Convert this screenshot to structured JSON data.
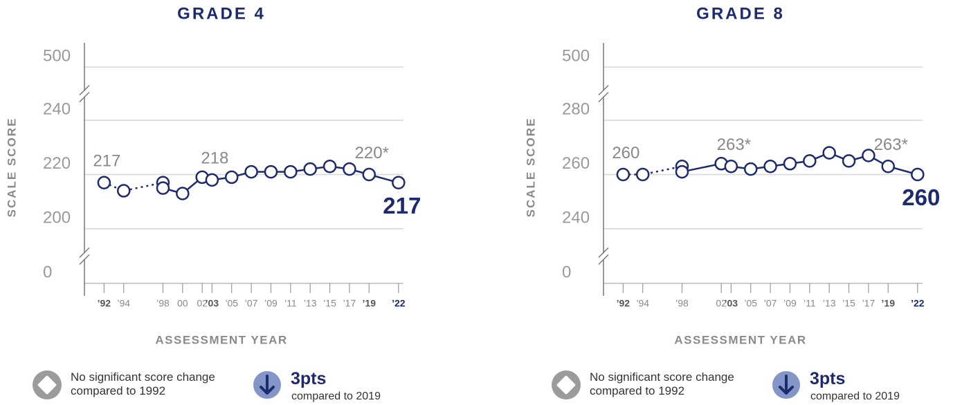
{
  "chart_data": [
    {
      "type": "line",
      "title": "GRADE 4",
      "y_label": "SCALE SCORE",
      "x_label": "ASSESSMENT YEAR",
      "color": "#1d2a6e",
      "xlim": [
        1990,
        2023
      ],
      "xticks": [
        {
          "value": 1992,
          "label": "’92",
          "bold": true
        },
        {
          "value": 1994,
          "label": "’94"
        },
        {
          "value": 1998,
          "label": "’98"
        },
        {
          "value": 2000,
          "label": "00"
        },
        {
          "value": 2002,
          "label": "02"
        },
        {
          "value": 2003,
          "label": "’03",
          "bold": true
        },
        {
          "value": 2005,
          "label": "’05"
        },
        {
          "value": 2007,
          "label": "’07"
        },
        {
          "value": 2009,
          "label": "’09"
        },
        {
          "value": 2011,
          "label": "’11"
        },
        {
          "value": 2013,
          "label": "’13"
        },
        {
          "value": 2015,
          "label": "’15"
        },
        {
          "value": 2017,
          "label": "’17"
        },
        {
          "value": 2019,
          "label": "’19",
          "bold": true
        },
        {
          "value": 2022,
          "label": "’22",
          "bold": true
        }
      ],
      "ylim": [
        0,
        500
      ],
      "yticks": [
        0,
        200,
        220,
        240,
        500
      ],
      "axis_breaks": true,
      "grid": true,
      "series": [
        {
          "dashed": true,
          "x": [
            1992,
            1994,
            1998
          ],
          "values": [
            217,
            214,
            217
          ],
          "value_labels": [
            "217",
            null,
            null
          ]
        },
        {
          "dashed": false,
          "x": [
            1998,
            2000,
            2002,
            2003,
            2005,
            2007,
            2009,
            2011,
            2013,
            2015,
            2017,
            2019,
            2022
          ],
          "values": [
            215,
            213,
            219,
            218,
            219,
            221,
            221,
            221,
            222,
            223,
            222,
            220,
            217
          ],
          "value_labels": [
            null,
            null,
            null,
            "218",
            null,
            null,
            null,
            null,
            null,
            null,
            null,
            "220*",
            "217"
          ]
        }
      ],
      "footer": {
        "baseline_note": "No significant score change compared to 1992",
        "change": "3pts",
        "change_note": "compared to 2019"
      }
    },
    {
      "type": "line",
      "title": "GRADE 8",
      "y_label": "SCALE SCORE",
      "x_label": "ASSESSMENT YEAR",
      "color": "#1d2a6e",
      "xlim": [
        1990,
        2023
      ],
      "xticks": [
        {
          "value": 1992,
          "label": "’92",
          "bold": true
        },
        {
          "value": 1994,
          "label": "’94"
        },
        {
          "value": 1998,
          "label": "’98"
        },
        {
          "value": 2002,
          "label": "02"
        },
        {
          "value": 2003,
          "label": "’03",
          "bold": true
        },
        {
          "value": 2005,
          "label": "’05"
        },
        {
          "value": 2007,
          "label": "’07"
        },
        {
          "value": 2009,
          "label": "’09"
        },
        {
          "value": 2011,
          "label": "’11"
        },
        {
          "value": 2013,
          "label": "’13"
        },
        {
          "value": 2015,
          "label": "’15"
        },
        {
          "value": 2017,
          "label": "’17"
        },
        {
          "value": 2019,
          "label": "’19",
          "bold": true
        },
        {
          "value": 2022,
          "label": "’22",
          "bold": true
        }
      ],
      "ylim": [
        0,
        500
      ],
      "yticks": [
        0,
        240,
        260,
        280,
        500
      ],
      "axis_breaks": true,
      "grid": true,
      "series": [
        {
          "dashed": true,
          "x": [
            1992,
            1994,
            1998
          ],
          "values": [
            260,
            260,
            263
          ],
          "value_labels": [
            "260",
            null,
            null
          ]
        },
        {
          "dashed": false,
          "x": [
            1998,
            2002,
            2003,
            2005,
            2007,
            2009,
            2011,
            2013,
            2015,
            2017,
            2019,
            2022
          ],
          "values": [
            261,
            264,
            263,
            262,
            263,
            264,
            265,
            268,
            265,
            267,
            263,
            260
          ],
          "value_labels": [
            null,
            null,
            "263*",
            null,
            null,
            null,
            null,
            null,
            null,
            null,
            "263*",
            "260"
          ]
        }
      ],
      "footer": {
        "baseline_note": "No significant score change compared to 1992",
        "change": "3pts",
        "change_note": "compared to 2019"
      }
    }
  ]
}
